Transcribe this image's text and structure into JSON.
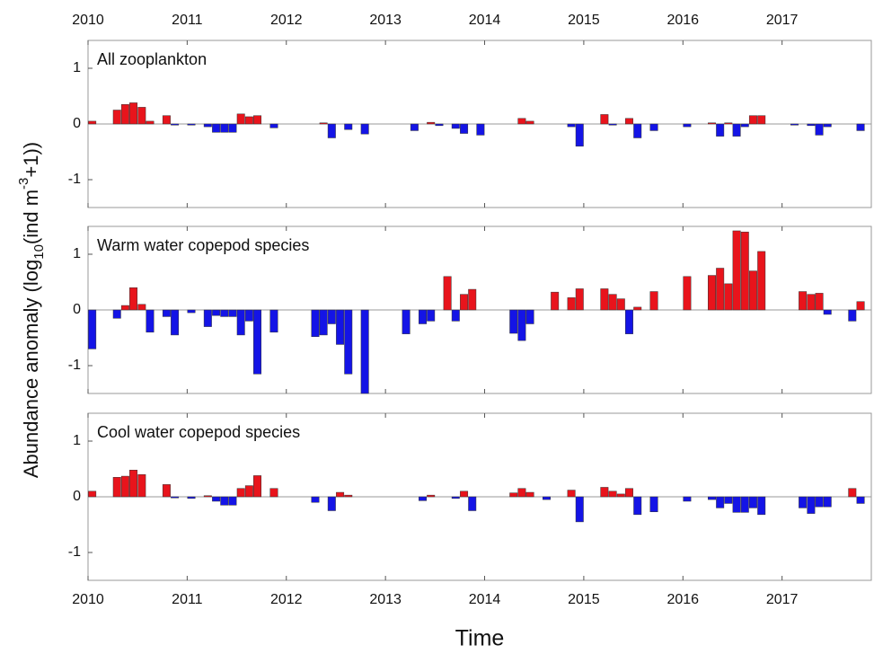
{
  "chart_data": [
    {
      "type": "bar",
      "title": "All zooplankton",
      "xaxis_labels": "top",
      "positive_color": "#e8141c",
      "negative_color": "#1414e6",
      "xlim": [
        2010,
        2017.9
      ],
      "xticks": [
        2010,
        2011,
        2012,
        2013,
        2014,
        2015,
        2016,
        2017
      ],
      "ylim": [
        -1.5,
        1.5
      ],
      "yticks": [
        -1,
        0,
        1
      ],
      "x": [
        2010.042,
        2010.292,
        2010.375,
        2010.458,
        2010.542,
        2010.625,
        2010.792,
        2010.875,
        2011.042,
        2011.208,
        2011.292,
        2011.375,
        2011.458,
        2011.542,
        2011.625,
        2011.708,
        2011.875,
        2012.375,
        2012.458,
        2012.625,
        2012.792,
        2013.292,
        2013.458,
        2013.542,
        2013.708,
        2013.792,
        2013.958,
        2014.375,
        2014.458,
        2014.875,
        2014.958,
        2015.208,
        2015.292,
        2015.458,
        2015.542,
        2015.708,
        2016.042,
        2016.292,
        2016.375,
        2016.458,
        2016.542,
        2016.625,
        2016.708,
        2016.792,
        2017.125,
        2017.292,
        2017.375,
        2017.458,
        2017.792
      ],
      "values": [
        0.05,
        0.25,
        0.35,
        0.38,
        0.3,
        0.05,
        0.15,
        -0.02,
        -0.02,
        -0.05,
        -0.15,
        -0.15,
        -0.15,
        0.18,
        0.13,
        0.15,
        -0.07,
        0.02,
        -0.25,
        -0.1,
        -0.18,
        -0.12,
        0.03,
        -0.03,
        -0.08,
        -0.17,
        -0.2,
        0.1,
        0.05,
        -0.05,
        -0.4,
        0.17,
        -0.02,
        0.1,
        -0.25,
        -0.12,
        -0.05,
        0.02,
        -0.22,
        0.02,
        -0.22,
        -0.05,
        0.15,
        0.15,
        -0.02,
        -0.03,
        -0.2,
        -0.05,
        -0.12
      ]
    },
    {
      "type": "bar",
      "title": "Warm water copepod species",
      "xaxis_labels": "none",
      "y_label_parts": [
        "Abundance anomaly (log",
        "10",
        "(ind m",
        "-3",
        "+1))"
      ],
      "positive_color": "#e8141c",
      "negative_color": "#1414e6",
      "xlim": [
        2010,
        2017.9
      ],
      "xticks": [
        2010,
        2011,
        2012,
        2013,
        2014,
        2015,
        2016,
        2017
      ],
      "ylim": [
        -1.5,
        1.5
      ],
      "yticks": [
        -1,
        0,
        1
      ],
      "x": [
        2010.042,
        2010.292,
        2010.375,
        2010.458,
        2010.542,
        2010.625,
        2010.792,
        2010.875,
        2011.042,
        2011.208,
        2011.292,
        2011.375,
        2011.458,
        2011.542,
        2011.625,
        2011.708,
        2011.875,
        2012.292,
        2012.375,
        2012.458,
        2012.542,
        2012.625,
        2012.792,
        2013.208,
        2013.375,
        2013.458,
        2013.625,
        2013.708,
        2013.792,
        2013.875,
        2014.292,
        2014.375,
        2014.458,
        2014.708,
        2014.875,
        2014.958,
        2015.208,
        2015.292,
        2015.375,
        2015.458,
        2015.542,
        2015.708,
        2016.042,
        2016.292,
        2016.375,
        2016.458,
        2016.542,
        2016.625,
        2016.708,
        2016.792,
        2017.208,
        2017.292,
        2017.375,
        2017.458,
        2017.708,
        2017.792
      ],
      "values": [
        -0.7,
        -0.15,
        0.08,
        0.4,
        0.1,
        -0.4,
        -0.12,
        -0.45,
        -0.05,
        -0.3,
        -0.1,
        -0.12,
        -0.12,
        -0.45,
        -0.2,
        -1.15,
        -0.4,
        -0.48,
        -0.45,
        -0.25,
        -0.62,
        -1.15,
        -1.5,
        -0.43,
        -0.25,
        -0.2,
        0.6,
        -0.2,
        0.28,
        0.37,
        -0.42,
        -0.55,
        -0.25,
        0.32,
        0.22,
        0.38,
        0.38,
        0.28,
        0.2,
        -0.43,
        0.05,
        0.33,
        0.6,
        0.62,
        0.75,
        0.47,
        1.42,
        1.4,
        0.7,
        1.05,
        0.33,
        0.28,
        0.3,
        -0.08,
        -0.2,
        0.15
      ]
    },
    {
      "type": "bar",
      "title": "Cool water copepod species",
      "xaxis_labels": "bottom",
      "x_label": "Time",
      "positive_color": "#e8141c",
      "negative_color": "#1414e6",
      "xlim": [
        2010,
        2017.9
      ],
      "xticks": [
        2010,
        2011,
        2012,
        2013,
        2014,
        2015,
        2016,
        2017
      ],
      "ylim": [
        -1.5,
        1.5
      ],
      "yticks": [
        -1,
        0,
        1
      ],
      "x": [
        2010.042,
        2010.292,
        2010.375,
        2010.458,
        2010.542,
        2010.792,
        2010.875,
        2011.042,
        2011.208,
        2011.292,
        2011.375,
        2011.458,
        2011.542,
        2011.625,
        2011.708,
        2011.875,
        2012.292,
        2012.458,
        2012.542,
        2012.625,
        2013.375,
        2013.458,
        2013.708,
        2013.792,
        2013.875,
        2014.292,
        2014.375,
        2014.458,
        2014.625,
        2014.875,
        2014.958,
        2015.208,
        2015.292,
        2015.375,
        2015.458,
        2015.542,
        2015.708,
        2016.042,
        2016.292,
        2016.375,
        2016.458,
        2016.542,
        2016.625,
        2016.708,
        2016.792,
        2017.208,
        2017.292,
        2017.375,
        2017.458,
        2017.708,
        2017.792
      ],
      "values": [
        0.1,
        0.35,
        0.37,
        0.48,
        0.4,
        0.22,
        -0.02,
        -0.03,
        0.02,
        -0.08,
        -0.15,
        -0.15,
        0.15,
        0.2,
        0.38,
        0.15,
        -0.1,
        -0.25,
        0.08,
        0.03,
        -0.07,
        0.03,
        -0.03,
        0.1,
        -0.25,
        0.07,
        0.15,
        0.08,
        -0.05,
        0.12,
        -0.45,
        0.17,
        0.1,
        0.05,
        0.15,
        -0.32,
        -0.27,
        -0.08,
        -0.05,
        -0.2,
        -0.12,
        -0.28,
        -0.28,
        -0.2,
        -0.32,
        -0.2,
        -0.3,
        -0.18,
        -0.18,
        0.15,
        -0.12
      ]
    }
  ]
}
